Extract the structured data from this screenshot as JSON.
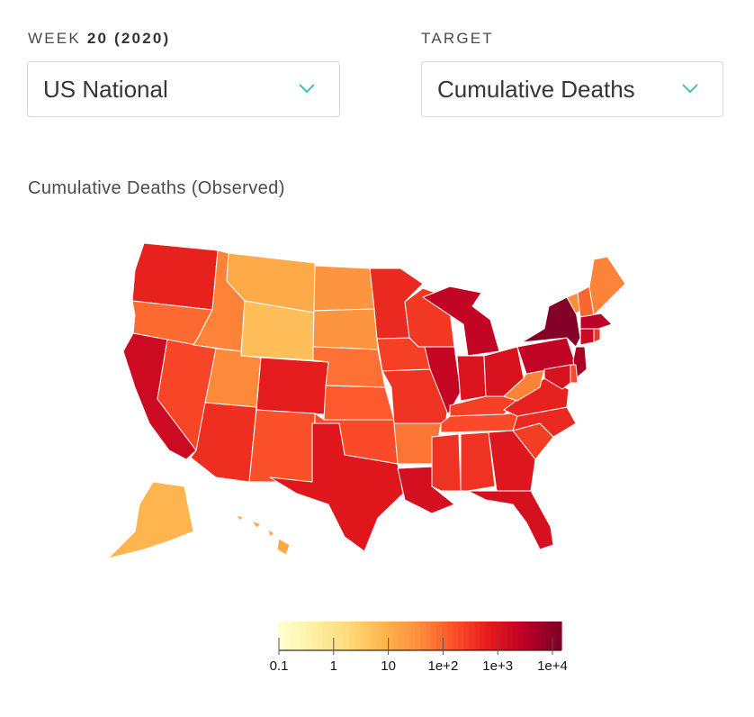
{
  "week_selector": {
    "label_prefix": "WEEK",
    "label_value": "20 (2020)",
    "selected": "US National"
  },
  "target_selector": {
    "label": "TARGET",
    "selected": "Cumulative Deaths"
  },
  "map": {
    "title": "Cumulative Deaths (Observed)",
    "color_scale": [
      "#ffffcc",
      "#ffeda0",
      "#fed976",
      "#feb24c",
      "#fd8d3c",
      "#fc4e2a",
      "#e31a1c",
      "#bd0026",
      "#800026"
    ],
    "scale": "log",
    "legend_ticks": [
      "0.1",
      "1",
      "10",
      "1e+2",
      "1e+3",
      "1e+4"
    ],
    "states": {
      "WA": 1000,
      "OR": 130,
      "CA": 3300,
      "NV": 350,
      "ID": 70,
      "MT": 16,
      "WY": 7,
      "UT": 60,
      "AZ": 700,
      "CO": 1200,
      "NM": 250,
      "ND": 40,
      "SD": 40,
      "NE": 110,
      "KS": 200,
      "OK": 300,
      "TX": 1500,
      "MN": 800,
      "IA": 400,
      "MO": 600,
      "AR": 100,
      "LA": 2500,
      "WI": 500,
      "IL": 4500,
      "MI": 5000,
      "IN": 1800,
      "OH": 2000,
      "KY": 400,
      "TN": 300,
      "MS": 600,
      "AL": 600,
      "GA": 1600,
      "FL": 2200,
      "SC": 450,
      "NC": 800,
      "VA": 1000,
      "WV": 70,
      "PA": 5000,
      "NY": 28000,
      "VT": 55,
      "NH": 150,
      "ME": 70,
      "MA": 6000,
      "CT": 3500,
      "RI": 550,
      "NJ": 10500,
      "DE": 300,
      "MD": 2000,
      "AK": 10,
      "HI": 17
    }
  }
}
